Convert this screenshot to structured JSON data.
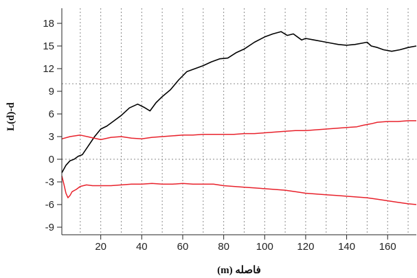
{
  "chart_data": {
    "type": "line",
    "title": "",
    "xlabel": "فاصله (m)",
    "ylabel": "L(d)-d",
    "xlim": [
      1,
      174
    ],
    "ylim": [
      -10,
      20
    ],
    "x_ticks": [
      20,
      40,
      60,
      80,
      100,
      120,
      140,
      160
    ],
    "y_ticks": [
      -9,
      -6,
      -3,
      0,
      3,
      6,
      9,
      12,
      15,
      18
    ],
    "x_grid": [
      10,
      20,
      30,
      40,
      50,
      60,
      70,
      80,
      90,
      100,
      110,
      120,
      130,
      140,
      150,
      160,
      170
    ],
    "y_grid": [
      0,
      10
    ],
    "grid": true,
    "legend": "none",
    "series": [
      {
        "color": "#000000",
        "role": "observed",
        "x": [
          1,
          3,
          5,
          7,
          9,
          11,
          14,
          17,
          20,
          23,
          26,
          30,
          34,
          38,
          41,
          44,
          47,
          50,
          54,
          58,
          62,
          66,
          70,
          74,
          78,
          82,
          86,
          90,
          95,
          100,
          104,
          108,
          111,
          114,
          116,
          118,
          120,
          124,
          128,
          132,
          136,
          140,
          144,
          148,
          150,
          152,
          155,
          158,
          162,
          166,
          170,
          174
        ],
        "y": [
          -1.8,
          -0.8,
          -0.2,
          0.0,
          0.4,
          0.6,
          1.8,
          3.0,
          4.0,
          4.4,
          5.0,
          5.8,
          6.8,
          7.3,
          6.9,
          6.4,
          7.5,
          8.3,
          9.2,
          10.5,
          11.6,
          12.0,
          12.4,
          12.9,
          13.3,
          13.4,
          14.1,
          14.6,
          15.5,
          16.2,
          16.6,
          16.9,
          16.4,
          16.6,
          16.2,
          15.8,
          16.0,
          15.8,
          15.6,
          15.4,
          15.2,
          15.1,
          15.2,
          15.4,
          15.5,
          15.0,
          14.8,
          14.5,
          14.3,
          14.5,
          14.8,
          15.0
        ]
      },
      {
        "color": "#e8202a",
        "role": "upper envelope",
        "x": [
          1,
          5,
          10,
          15,
          20,
          25,
          30,
          35,
          40,
          45,
          50,
          55,
          60,
          65,
          70,
          75,
          80,
          85,
          90,
          95,
          100,
          105,
          110,
          115,
          120,
          125,
          130,
          135,
          140,
          145,
          148,
          150,
          152,
          155,
          160,
          165,
          170,
          174
        ],
        "y": [
          2.7,
          3.0,
          3.2,
          2.9,
          2.6,
          2.9,
          3.0,
          2.8,
          2.7,
          2.9,
          3.0,
          3.1,
          3.2,
          3.2,
          3.3,
          3.3,
          3.3,
          3.3,
          3.4,
          3.4,
          3.5,
          3.6,
          3.7,
          3.8,
          3.8,
          3.9,
          4.0,
          4.1,
          4.2,
          4.3,
          4.5,
          4.6,
          4.7,
          4.9,
          5.0,
          5.0,
          5.1,
          5.1
        ]
      },
      {
        "color": "#e8202a",
        "role": "lower envelope",
        "x": [
          1,
          2,
          3,
          4,
          5,
          6,
          8,
          10,
          13,
          16,
          20,
          25,
          30,
          35,
          40,
          45,
          50,
          55,
          60,
          65,
          70,
          75,
          80,
          85,
          90,
          95,
          100,
          105,
          110,
          115,
          120,
          125,
          130,
          135,
          140,
          145,
          150,
          155,
          160,
          165,
          170,
          174
        ],
        "y": [
          -2.2,
          -3.3,
          -4.5,
          -5.1,
          -4.8,
          -4.3,
          -4.0,
          -3.6,
          -3.4,
          -3.5,
          -3.5,
          -3.5,
          -3.4,
          -3.3,
          -3.3,
          -3.2,
          -3.3,
          -3.3,
          -3.2,
          -3.3,
          -3.3,
          -3.3,
          -3.5,
          -3.6,
          -3.7,
          -3.8,
          -3.9,
          -4.0,
          -4.1,
          -4.3,
          -4.5,
          -4.6,
          -4.7,
          -4.8,
          -4.9,
          -5.0,
          -5.1,
          -5.3,
          -5.5,
          -5.7,
          -5.9,
          -6.0
        ]
      }
    ]
  }
}
